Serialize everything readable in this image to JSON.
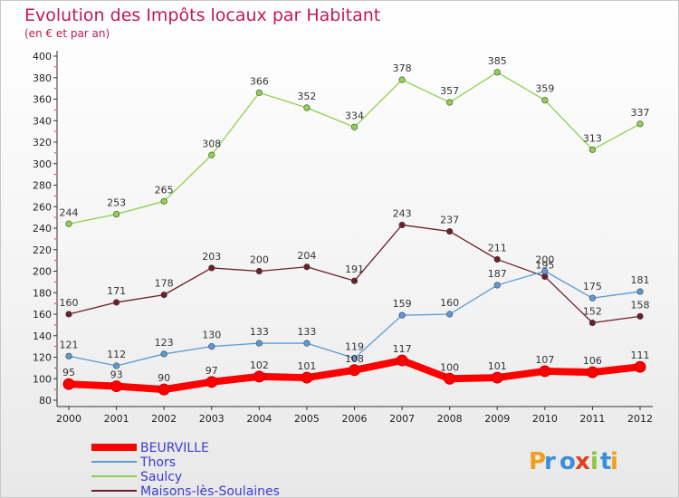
{
  "header": {
    "title": "Evolution des Impôts locaux par Habitant",
    "subtitle": "(en € et par an)"
  },
  "brand": {
    "logo": "Proxiti"
  },
  "chart_data": {
    "type": "line",
    "title": "Evolution des Impôts locaux par Habitant",
    "subtitle": "(en € et par an)",
    "x": [
      2000,
      2001,
      2002,
      2003,
      2004,
      2005,
      2006,
      2007,
      2008,
      2009,
      2010,
      2011,
      2012
    ],
    "ylim": [
      80,
      400
    ],
    "yticks": [
      80,
      100,
      120,
      140,
      160,
      180,
      200,
      220,
      240,
      260,
      280,
      300,
      320,
      340,
      360,
      380,
      400
    ],
    "grid": false,
    "legend_position": "bottom-left",
    "series": [
      {
        "name": "BEURVILLE",
        "color": "#ff0000",
        "values": [
          95,
          93,
          90,
          97,
          102,
          101,
          108,
          117,
          100,
          101,
          107,
          106,
          111
        ]
      },
      {
        "name": "Thors",
        "color": "#5a9bd5",
        "values": [
          121,
          112,
          123,
          130,
          133,
          133,
          119,
          159,
          160,
          187,
          200,
          175,
          181
        ]
      },
      {
        "name": "Saulcy",
        "color": "#8fd14f",
        "values": [
          244,
          253,
          265,
          308,
          366,
          352,
          334,
          378,
          357,
          385,
          359,
          313,
          337
        ]
      },
      {
        "name": "Maisons-lès-Soulaines",
        "color": "#6b1f2a",
        "values": [
          160,
          171,
          178,
          203,
          200,
          204,
          191,
          243,
          237,
          211,
          195,
          152,
          158
        ]
      }
    ]
  }
}
